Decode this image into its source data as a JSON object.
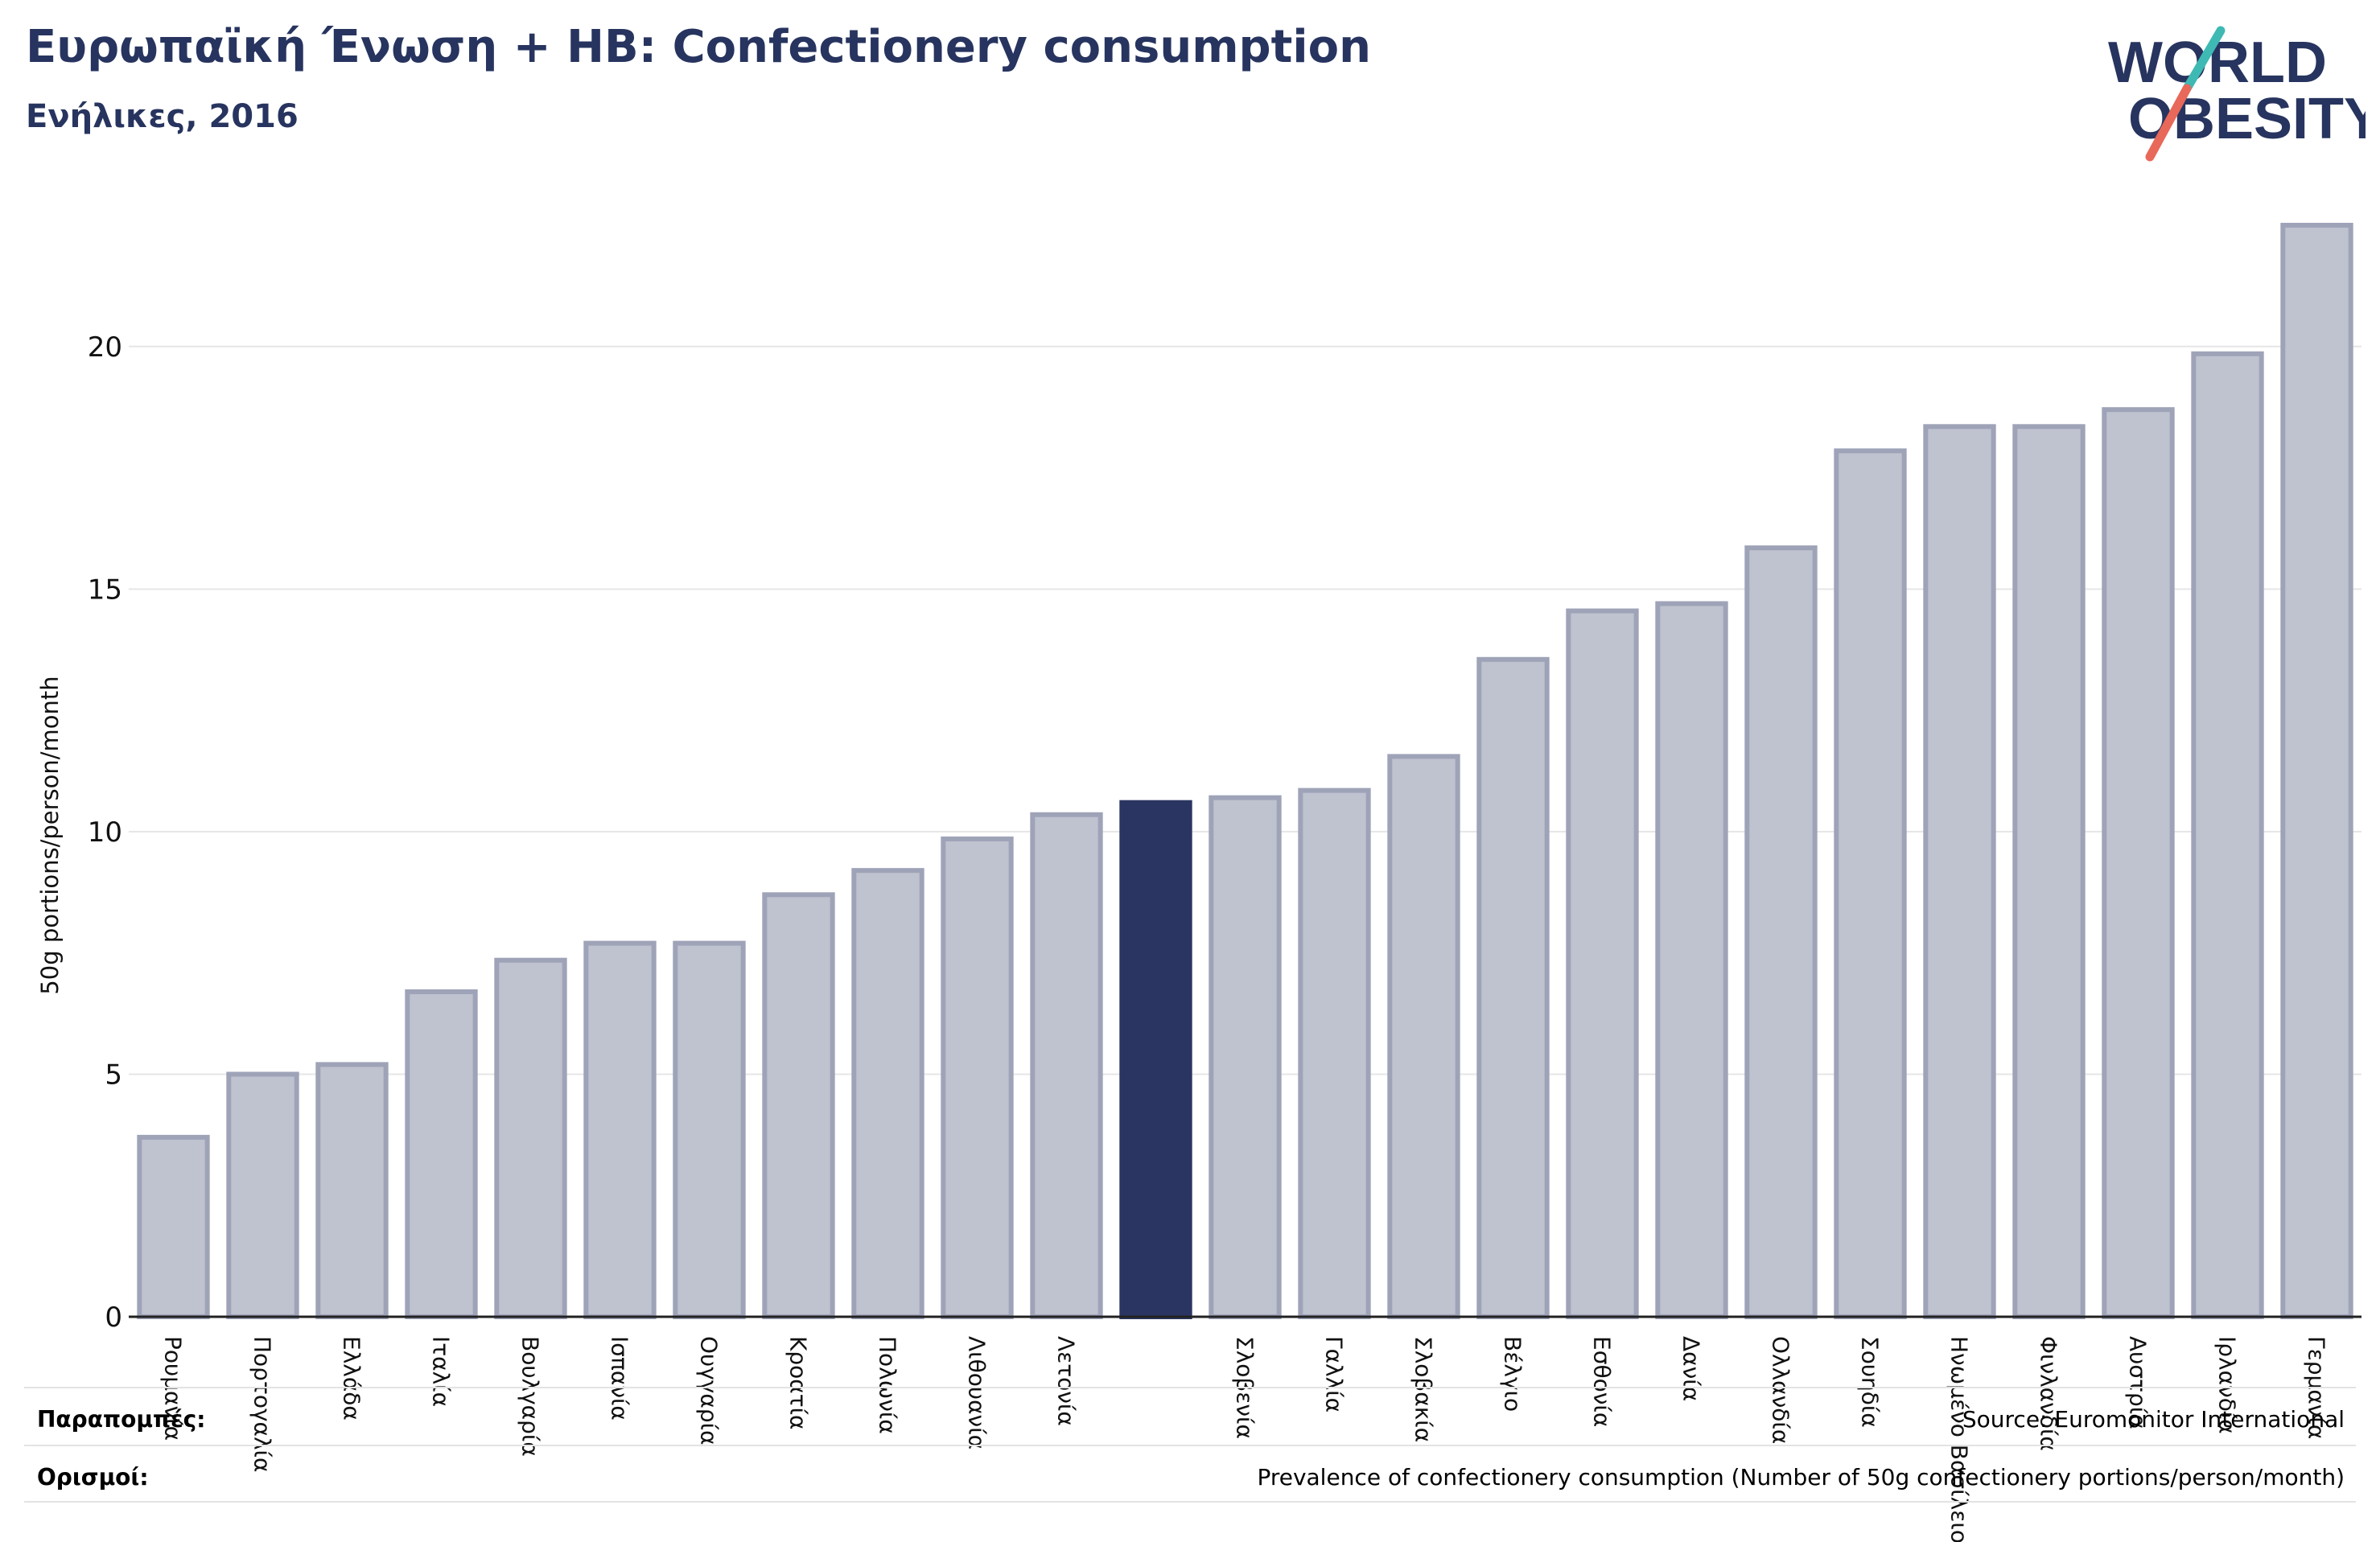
{
  "header": {
    "title": "Ευρωπαϊκή Ένωση + ΗΒ: Confectionery consumption",
    "subtitle": "Ενήλικες, 2016"
  },
  "logo": {
    "line1": "WORLD",
    "line2": "OBESITY",
    "icon": "world-obesity-logo"
  },
  "footer": {
    "references_label": "Παραπομπές:",
    "references_value": "Source: Euromonitor International",
    "definitions_label": "Ορισμοί:",
    "definitions_value": "Prevalence of confectionery consumption (Number of 50g confectionery portions/person/month)"
  },
  "colors": {
    "bar": "#bfc2cf",
    "bar_stroke": "#9ea3b8",
    "highlight": "#2b3562",
    "text": "#27345f"
  },
  "chart_data": {
    "type": "bar",
    "ylabel": "50g portions/person/month",
    "ylim": [
      0,
      22.5
    ],
    "yticks": [
      0,
      5,
      10,
      15,
      20
    ],
    "grid": true,
    "categories": [
      "Ρουμανία",
      "Πορτογαλία",
      "Ελλάδα",
      "Ιταλία",
      "Βουλγαρία",
      "Ισπανία",
      "Ουγγαρία",
      "Κροατία",
      "Πολωνία",
      "Λιθουανία",
      "Λετονία",
      "",
      "Σλοβενία",
      "Γαλλία",
      "Σλοβακία",
      "Βέλγιο",
      "Εσθονία",
      "Δανία",
      "Ολλανδία",
      "Σουηδία",
      "Ηνωμένο Βασίλειο",
      "Φινλανδία",
      "Αυστρία",
      "Ιρλανδία",
      "Γερμανία"
    ],
    "values": [
      3.7,
      5.0,
      5.2,
      6.7,
      7.35,
      7.7,
      7.7,
      8.7,
      9.2,
      9.85,
      10.35,
      10.6,
      10.7,
      10.85,
      11.55,
      13.55,
      14.55,
      14.7,
      15.85,
      17.85,
      18.35,
      18.35,
      18.7,
      19.85,
      22.5
    ],
    "highlight_index": 11
  }
}
